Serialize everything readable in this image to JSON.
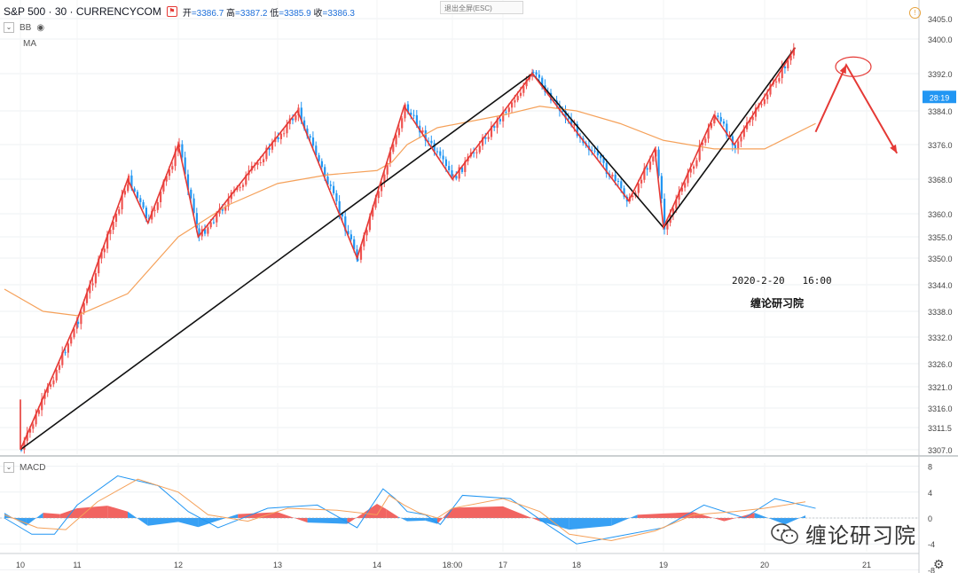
{
  "header": {
    "symbol": "S&P 500 · 30 · CURRENCYCOM",
    "open_label": "开",
    "open": "=3386.7",
    "high_label": "高",
    "high": "=3387.2",
    "low_label": "低",
    "low": "=3385.9",
    "close_label": "收",
    "close": "=3386.3"
  },
  "indicators": {
    "bb": "BB",
    "ma": "MA",
    "macd": "MACD"
  },
  "toolbar": {
    "exit_fullscreen": "退出全屏(ESC)"
  },
  "annotations": {
    "datetime": "2020-2-20   16:00",
    "studio": "缠论研习院"
  },
  "watermark": {
    "text": "缠论研习院"
  },
  "colors": {
    "up": "#ef5350",
    "down": "#2196f3",
    "ma": "#f5a15a",
    "stroke_red": "#e53935",
    "stroke_black": "#111111",
    "price_tag": "#2196f3"
  },
  "chart_data": [
    {
      "type": "line",
      "title": "S&P 500 · 30 · CURRENCYCOM",
      "y_ticks": [
        3405.0,
        3400.0,
        3392.0,
        3384.0,
        3376.0,
        3368.0,
        3360.0,
        3355.0,
        3350.0,
        3344.0,
        3338.0,
        3332.0,
        3326.0,
        3321.0,
        3316.0,
        3311.5,
        3307.0
      ],
      "x_ticks": [
        "10",
        "11",
        "12",
        "13",
        "14",
        "18:00",
        "17",
        "18",
        "19",
        "20",
        "21"
      ],
      "current_price_label": "28:19",
      "ylim": [
        3306,
        3407
      ],
      "red_strokes": [
        {
          "x": "10",
          "y": 3318
        },
        {
          "x": "10",
          "y": 3307
        },
        {
          "x": "11",
          "y": 3336
        },
        {
          "x": "11.5",
          "y": 3368
        },
        {
          "x": "11.7",
          "y": 3358
        },
        {
          "x": "12",
          "y": 3376
        },
        {
          "x": "12.2",
          "y": 3355
        },
        {
          "x": "13.2",
          "y": 3384
        },
        {
          "x": "13.8",
          "y": 3350
        },
        {
          "x": "14.9",
          "y": 3385
        },
        {
          "x": "16.5",
          "y": 3368
        },
        {
          "x": "17.4",
          "y": 3392
        },
        {
          "x": "18.6",
          "y": 3363
        },
        {
          "x": "18.9",
          "y": 3375
        },
        {
          "x": "19",
          "y": 3357
        },
        {
          "x": "19.5",
          "y": 3383
        },
        {
          "x": "19.7",
          "y": 3376
        },
        {
          "x": "20.3",
          "y": 3398
        }
      ],
      "black_strokes": [
        {
          "x": "10",
          "y": 3307
        },
        {
          "x": "17.4",
          "y": 3392
        },
        {
          "x": "19",
          "y": 3357
        },
        {
          "x": "20.3",
          "y": 3398
        }
      ],
      "projection": [
        {
          "x": "20.5",
          "y": 3379
        },
        {
          "x": "20.8",
          "y": 3394
        },
        {
          "x": "21.3",
          "y": 3374
        }
      ],
      "ma_series": [
        {
          "x": "9.9",
          "y": 3343
        },
        {
          "x": "10.4",
          "y": 3338
        },
        {
          "x": "11",
          "y": 3337
        },
        {
          "x": "11.5",
          "y": 3342
        },
        {
          "x": "12",
          "y": 3355
        },
        {
          "x": "12.5",
          "y": 3362
        },
        {
          "x": "13",
          "y": 3367
        },
        {
          "x": "13.5",
          "y": 3369
        },
        {
          "x": "14",
          "y": 3370
        },
        {
          "x": "14.5",
          "y": 3372
        },
        {
          "x": "15",
          "y": 3376
        },
        {
          "x": "16",
          "y": 3380
        },
        {
          "x": "17",
          "y": 3383
        },
        {
          "x": "17.5",
          "y": 3385
        },
        {
          "x": "18",
          "y": 3384
        },
        {
          "x": "18.5",
          "y": 3381
        },
        {
          "x": "19",
          "y": 3377
        },
        {
          "x": "19.5",
          "y": 3375
        },
        {
          "x": "20",
          "y": 3375
        },
        {
          "x": "20.5",
          "y": 3381
        }
      ]
    },
    {
      "type": "bar",
      "title": "MACD",
      "y_ticks": [
        8,
        4,
        0,
        -4,
        -8
      ],
      "ylim": [
        -9,
        9
      ],
      "histogram": [
        {
          "x": "9.9",
          "y": 0.8
        },
        {
          "x": "10.1",
          "y": -1.2
        },
        {
          "x": "10.4",
          "y": 0.8
        },
        {
          "x": "10.7",
          "y": 0.6
        },
        {
          "x": "11",
          "y": 1.5
        },
        {
          "x": "11.3",
          "y": 1.9
        },
        {
          "x": "11.5",
          "y": 1.0
        },
        {
          "x": "11.7",
          "y": -1.2
        },
        {
          "x": "12",
          "y": -0.6
        },
        {
          "x": "12.2",
          "y": -1.4
        },
        {
          "x": "12.6",
          "y": 0.6
        },
        {
          "x": "13",
          "y": 0.9
        },
        {
          "x": "13.3",
          "y": -0.7
        },
        {
          "x": "13.7",
          "y": -0.9
        },
        {
          "x": "14",
          "y": 2.2
        },
        {
          "x": "14.3",
          "y": 1.4
        },
        {
          "x": "14.7",
          "y": 0.2
        },
        {
          "x": "15",
          "y": -0.5
        },
        {
          "x": "15.6",
          "y": -0.4
        },
        {
          "x": "16",
          "y": -0.9
        },
        {
          "x": "16.5",
          "y": 1.6
        },
        {
          "x": "17",
          "y": 1.8
        },
        {
          "x": "17.5",
          "y": -0.5
        },
        {
          "x": "17.9",
          "y": -1.8
        },
        {
          "x": "18.4",
          "y": -1.2
        },
        {
          "x": "18.7",
          "y": 0.5
        },
        {
          "x": "19",
          "y": 0.7
        },
        {
          "x": "19.3",
          "y": 0.9
        },
        {
          "x": "19.6",
          "y": -0.5
        },
        {
          "x": "19.9",
          "y": 0.8
        },
        {
          "x": "20.2",
          "y": -1.0
        },
        {
          "x": "20.4",
          "y": 0.4
        }
      ],
      "macd_line": [
        {
          "x": "9.9",
          "y": 0
        },
        {
          "x": "10.2",
          "y": -2.5
        },
        {
          "x": "10.6",
          "y": -2.5
        },
        {
          "x": "11",
          "y": 2
        },
        {
          "x": "11.4",
          "y": 6.5
        },
        {
          "x": "11.8",
          "y": 5
        },
        {
          "x": "12.1",
          "y": 1
        },
        {
          "x": "12.4",
          "y": -1.5
        },
        {
          "x": "12.9",
          "y": 1.5
        },
        {
          "x": "13.4",
          "y": 2
        },
        {
          "x": "13.8",
          "y": -1.5
        },
        {
          "x": "14.2",
          "y": 4.5
        },
        {
          "x": "14.6",
          "y": 3
        },
        {
          "x": "15",
          "y": 1
        },
        {
          "x": "15.6",
          "y": 0.5
        },
        {
          "x": "16.1",
          "y": -1
        },
        {
          "x": "16.6",
          "y": 3.5
        },
        {
          "x": "17.1",
          "y": 3
        },
        {
          "x": "17.6",
          "y": -1
        },
        {
          "x": "18",
          "y": -4
        },
        {
          "x": "18.6",
          "y": -2.5
        },
        {
          "x": "19",
          "y": -1.5
        },
        {
          "x": "19.4",
          "y": 2
        },
        {
          "x": "19.8",
          "y": 0
        },
        {
          "x": "20.1",
          "y": 3
        },
        {
          "x": "20.5",
          "y": 1.5
        }
      ],
      "signal_line": [
        {
          "x": "9.9",
          "y": 0.5
        },
        {
          "x": "10.3",
          "y": -1.5
        },
        {
          "x": "10.8",
          "y": -1.8
        },
        {
          "x": "11.2",
          "y": 2.5
        },
        {
          "x": "11.6",
          "y": 6
        },
        {
          "x": "12",
          "y": 4
        },
        {
          "x": "12.3",
          "y": 0.5
        },
        {
          "x": "12.7",
          "y": -0.5
        },
        {
          "x": "13.1",
          "y": 1.5
        },
        {
          "x": "13.6",
          "y": 1.2
        },
        {
          "x": "14",
          "y": 0.5
        },
        {
          "x": "14.4",
          "y": 3.5
        },
        {
          "x": "14.9",
          "y": 2
        },
        {
          "x": "15.4",
          "y": 0.8
        },
        {
          "x": "16",
          "y": 0
        },
        {
          "x": "16.5",
          "y": 1.5
        },
        {
          "x": "17",
          "y": 3
        },
        {
          "x": "17.5",
          "y": 1
        },
        {
          "x": "17.9",
          "y": -2.5
        },
        {
          "x": "18.4",
          "y": -3.5
        },
        {
          "x": "18.9",
          "y": -2
        },
        {
          "x": "19.3",
          "y": 0.5
        },
        {
          "x": "19.7",
          "y": 1
        },
        {
          "x": "20",
          "y": 1.5
        },
        {
          "x": "20.4",
          "y": 2.5
        }
      ]
    }
  ]
}
